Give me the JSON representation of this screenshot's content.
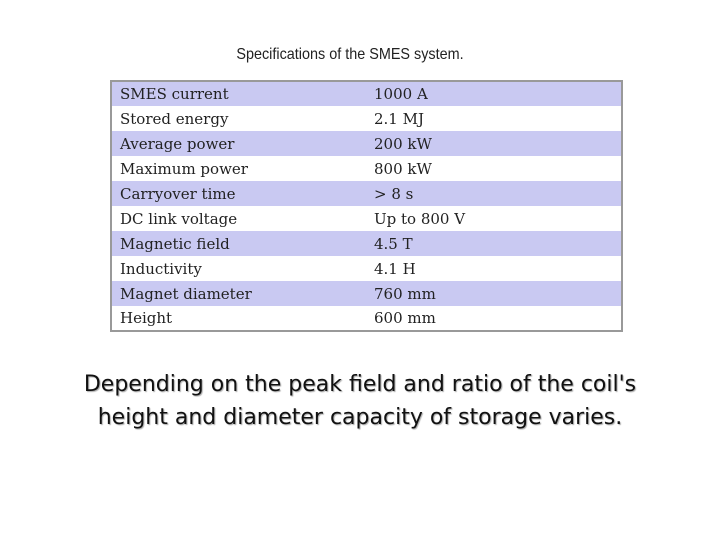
{
  "table": {
    "title": "Specifications of the SMES system.",
    "rows": [
      [
        "SMES current",
        "1000 A"
      ],
      [
        "Stored energy",
        "2.1 MJ"
      ],
      [
        "Average power",
        "200 kW"
      ],
      [
        "Maximum power",
        "800 kW"
      ],
      [
        "Carryover time",
        "> 8 s"
      ],
      [
        "DC link voltage",
        "Up to 800 V"
      ],
      [
        "Magnetic field",
        "4.5 T"
      ],
      [
        "Inductivity",
        "4.1 H"
      ],
      [
        "Magnet diameter",
        "760 mm"
      ],
      [
        "Height",
        "600 mm"
      ]
    ]
  },
  "caption": {
    "lines": [
      "Depending on the peak field and ratio of the coil's",
      "height and diameter capacity of storage varies."
    ]
  }
}
